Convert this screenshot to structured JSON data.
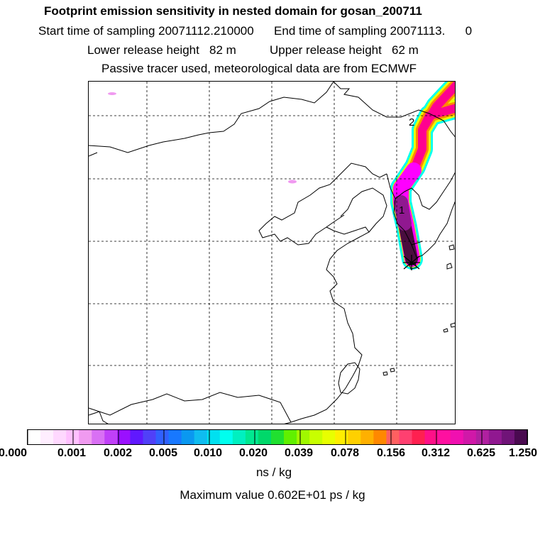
{
  "header": {
    "title": "Footprint emission sensitivity in nested domain for gosan_200711",
    "sampling_line": "Start time of sampling 20071112.210000      End time of sampling 20071113.      0",
    "release_line": "Lower release height   82 m          Upper release height   62 m",
    "tracer_line": "Passive tracer used, meteorological data are from ECMWF"
  },
  "map": {
    "markers": [
      "1",
      "2"
    ],
    "colors": {
      "coastline": "#000000",
      "gridline": "#000000",
      "plume_outer": "#ff00ff",
      "plume_inner": "#4a0d3e"
    }
  },
  "colorbar": {
    "colors": [
      "#ffffff",
      "#ffeeff",
      "#ffd8ff",
      "#ffc0ff",
      "#f09af0",
      "#d970f4",
      "#c040f8",
      "#9a10ff",
      "#6018ff",
      "#5040f8",
      "#3060ff",
      "#1878ff",
      "#0a98f0",
      "#0fbcf0",
      "#00e0f0",
      "#00ffee",
      "#00f0c0",
      "#00e890",
      "#00d86a",
      "#20e030",
      "#60f000",
      "#a0f800",
      "#c8ff00",
      "#e8ff00",
      "#ffee00",
      "#ffd000",
      "#ffb000",
      "#ff8800",
      "#ff6060",
      "#ff4070",
      "#ff2050",
      "#ff1088",
      "#ff10a0",
      "#f010b0",
      "#d018a8",
      "#b020a0",
      "#901890",
      "#701478",
      "#4a0a50"
    ],
    "tick_labels": [
      "0.000",
      "0.001",
      "0.002",
      "0.005",
      "0.010",
      "0.020",
      "0.039",
      "0.078",
      "0.156",
      "0.312",
      "0.625",
      "1.250"
    ],
    "units": "ns / kg"
  },
  "footer": {
    "max_value": "Maximum value  0.602E+01 ps / kg"
  }
}
